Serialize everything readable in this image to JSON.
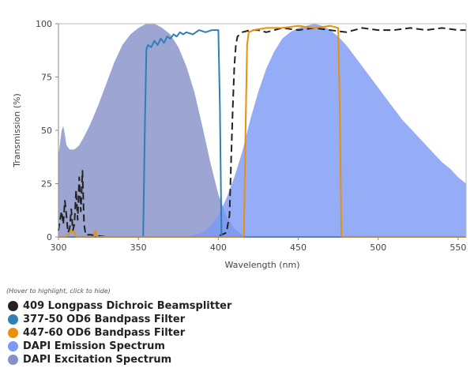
{
  "legend_hint": "(Hover to highlight, click to hide)",
  "chart_data": {
    "type": "area",
    "xlabel": "Wavelength (nm)",
    "ylabel": "Transmission (%)",
    "xlim": [
      300,
      555
    ],
    "ylim": [
      0,
      100
    ],
    "x_ticks": [
      300,
      350,
      400,
      450,
      500,
      550
    ],
    "y_ticks": [
      0,
      25,
      50,
      75,
      100
    ],
    "grid": false,
    "series": [
      {
        "name": "409 Longpass Dichroic Beamsplitter",
        "color": "#222222",
        "style": "dashed-line",
        "points": [
          [
            300,
            3
          ],
          [
            301,
            8
          ],
          [
            302,
            12
          ],
          [
            303,
            6
          ],
          [
            304,
            17
          ],
          [
            305,
            10
          ],
          [
            306,
            2
          ],
          [
            307,
            4
          ],
          [
            308,
            13
          ],
          [
            309,
            3
          ],
          [
            310,
            6
          ],
          [
            311,
            22
          ],
          [
            312,
            8
          ],
          [
            313,
            28
          ],
          [
            314,
            12
          ],
          [
            315,
            31
          ],
          [
            316,
            6
          ],
          [
            317,
            1
          ],
          [
            320,
            1
          ],
          [
            330,
            0
          ],
          [
            350,
            0
          ],
          [
            380,
            0
          ],
          [
            398,
            0
          ],
          [
            402,
            1
          ],
          [
            405,
            2
          ],
          [
            407,
            10
          ],
          [
            408,
            35
          ],
          [
            409,
            60
          ],
          [
            410,
            80
          ],
          [
            411,
            90
          ],
          [
            412,
            94
          ],
          [
            415,
            96
          ],
          [
            420,
            97
          ],
          [
            425,
            97
          ],
          [
            430,
            96
          ],
          [
            440,
            98
          ],
          [
            450,
            97
          ],
          [
            460,
            98
          ],
          [
            470,
            97
          ],
          [
            480,
            96
          ],
          [
            490,
            98
          ],
          [
            500,
            97
          ],
          [
            510,
            97
          ],
          [
            520,
            98
          ],
          [
            530,
            97
          ],
          [
            540,
            98
          ],
          [
            550,
            97
          ],
          [
            555,
            97
          ]
        ]
      },
      {
        "name": "377-50 OD6 Bandpass Filter",
        "color": "#2e7fb8",
        "style": "line",
        "points": [
          [
            300,
            0
          ],
          [
            350,
            0
          ],
          [
            353,
            0
          ],
          [
            354,
            50
          ],
          [
            355,
            88
          ],
          [
            356,
            90
          ],
          [
            358,
            89
          ],
          [
            360,
            92
          ],
          [
            362,
            90
          ],
          [
            364,
            93
          ],
          [
            366,
            91
          ],
          [
            368,
            94
          ],
          [
            370,
            93
          ],
          [
            372,
            95
          ],
          [
            374,
            94
          ],
          [
            376,
            96
          ],
          [
            378,
            95
          ],
          [
            380,
            96
          ],
          [
            384,
            95
          ],
          [
            388,
            97
          ],
          [
            392,
            96
          ],
          [
            396,
            97
          ],
          [
            400,
            97
          ],
          [
            401,
            60
          ],
          [
            402,
            0
          ],
          [
            555,
            0
          ]
        ]
      },
      {
        "name": "447-60 OD6 Bandpass Filter",
        "color": "#e8900a",
        "style": "line",
        "points": [
          [
            300,
            0
          ],
          [
            305,
            0
          ],
          [
            306,
            1
          ],
          [
            308,
            3
          ],
          [
            310,
            2
          ],
          [
            311,
            0
          ],
          [
            322,
            0
          ],
          [
            323,
            3
          ],
          [
            324,
            0
          ],
          [
            416,
            0
          ],
          [
            417,
            50
          ],
          [
            418,
            90
          ],
          [
            419,
            96
          ],
          [
            422,
            97
          ],
          [
            430,
            98
          ],
          [
            440,
            98
          ],
          [
            450,
            99
          ],
          [
            460,
            98
          ],
          [
            470,
            99
          ],
          [
            475,
            98
          ],
          [
            476,
            60
          ],
          [
            477,
            0
          ],
          [
            555,
            0
          ]
        ]
      },
      {
        "name": "DAPI Emission Spectrum",
        "color": "#7b99f5",
        "style": "area",
        "points": [
          [
            380,
            0
          ],
          [
            390,
            2
          ],
          [
            395,
            5
          ],
          [
            400,
            10
          ],
          [
            405,
            18
          ],
          [
            410,
            28
          ],
          [
            415,
            40
          ],
          [
            420,
            55
          ],
          [
            425,
            68
          ],
          [
            430,
            79
          ],
          [
            435,
            87
          ],
          [
            440,
            93
          ],
          [
            445,
            96
          ],
          [
            450,
            98
          ],
          [
            455,
            99
          ],
          [
            460,
            100
          ],
          [
            465,
            99
          ],
          [
            470,
            97
          ],
          [
            475,
            94
          ],
          [
            480,
            90
          ],
          [
            485,
            85
          ],
          [
            490,
            80
          ],
          [
            495,
            75
          ],
          [
            500,
            70
          ],
          [
            505,
            65
          ],
          [
            510,
            60
          ],
          [
            515,
            55
          ],
          [
            520,
            51
          ],
          [
            525,
            47
          ],
          [
            530,
            43
          ],
          [
            535,
            39
          ],
          [
            540,
            35
          ],
          [
            545,
            32
          ],
          [
            550,
            28
          ],
          [
            555,
            25
          ]
        ]
      },
      {
        "name": "DAPI Excitation Spectrum",
        "color": "#8590c8",
        "style": "area",
        "points": [
          [
            300,
            38
          ],
          [
            301,
            44
          ],
          [
            302,
            50
          ],
          [
            303,
            52
          ],
          [
            304,
            48
          ],
          [
            305,
            43
          ],
          [
            307,
            41
          ],
          [
            310,
            41
          ],
          [
            313,
            43
          ],
          [
            316,
            47
          ],
          [
            320,
            53
          ],
          [
            325,
            62
          ],
          [
            330,
            72
          ],
          [
            335,
            82
          ],
          [
            340,
            90
          ],
          [
            345,
            95
          ],
          [
            350,
            98
          ],
          [
            355,
            100
          ],
          [
            360,
            100
          ],
          [
            365,
            98
          ],
          [
            370,
            95
          ],
          [
            375,
            89
          ],
          [
            380,
            80
          ],
          [
            385,
            68
          ],
          [
            390,
            52
          ],
          [
            395,
            35
          ],
          [
            400,
            20
          ],
          [
            405,
            10
          ],
          [
            410,
            4
          ],
          [
            415,
            1
          ],
          [
            420,
            0
          ]
        ]
      }
    ]
  }
}
